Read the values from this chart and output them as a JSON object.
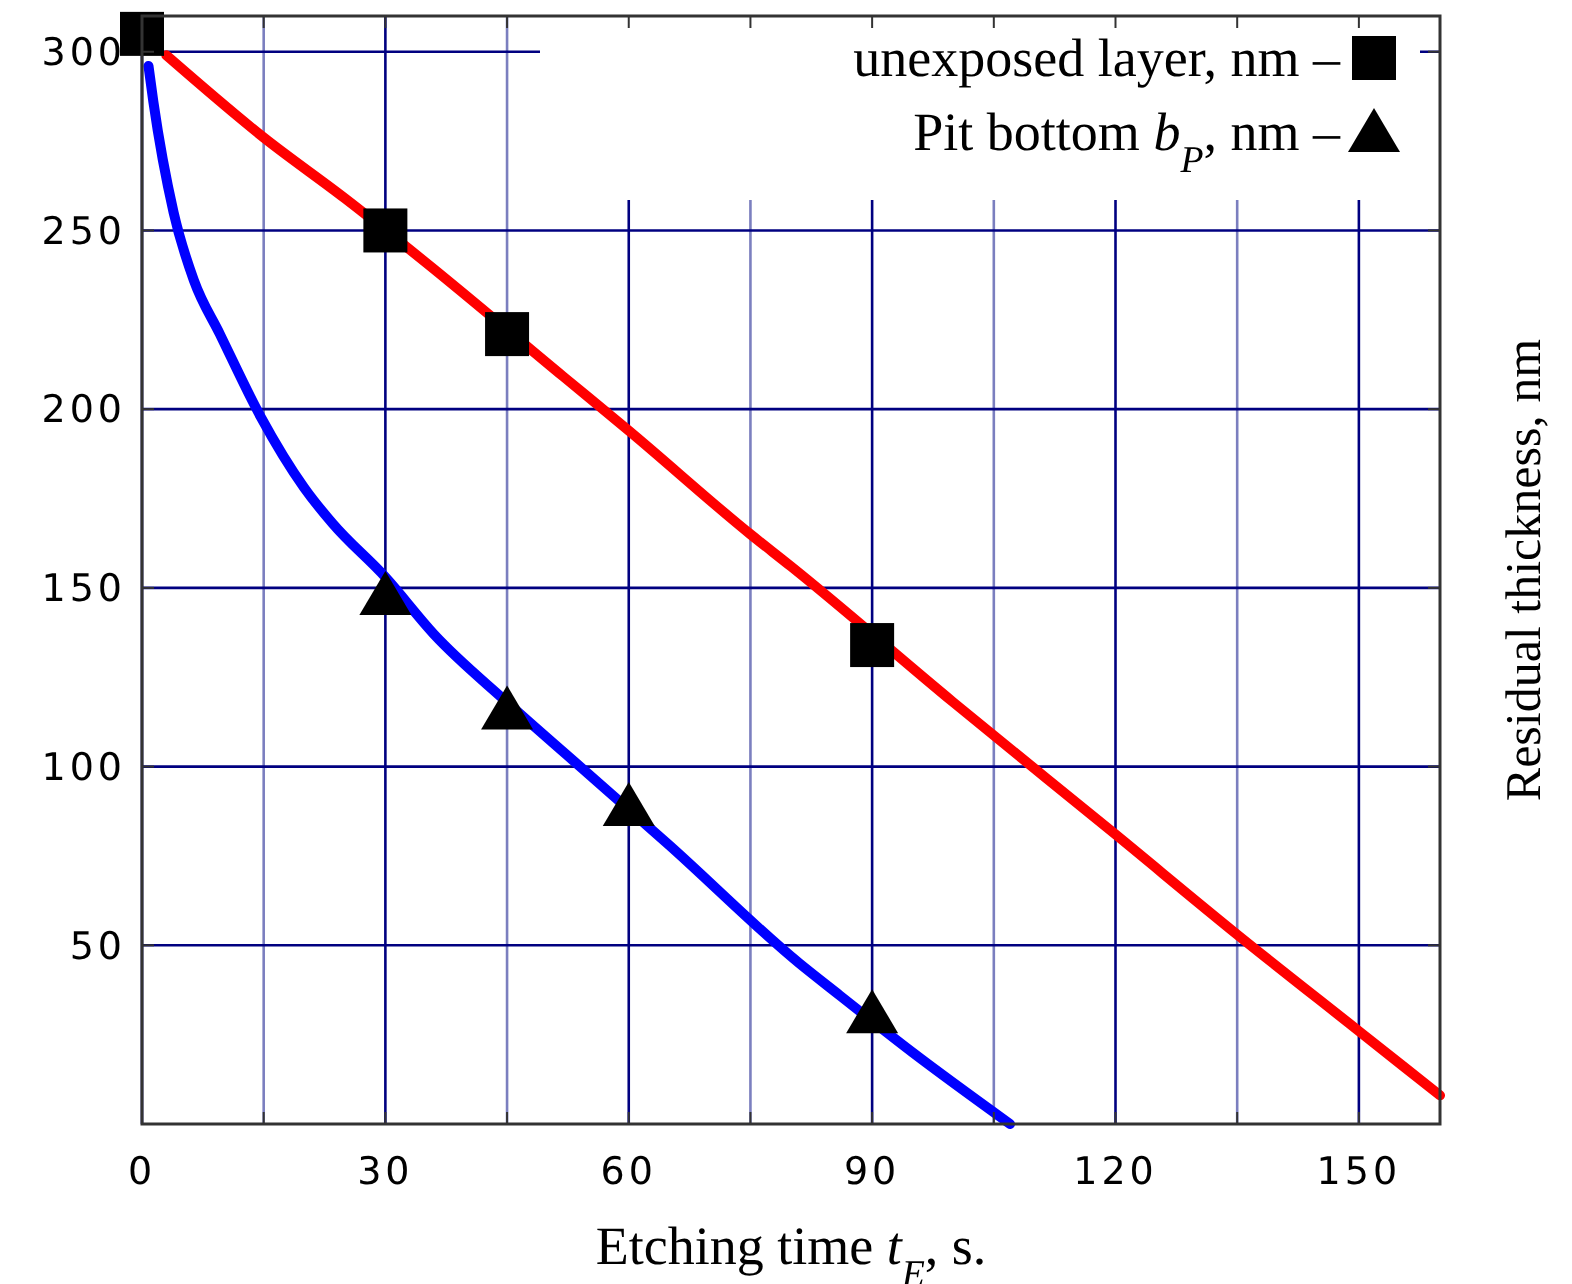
{
  "chart_data": {
    "type": "line",
    "xlabel": "Etching time t$_{E}$, s.",
    "ylabel": "Residual thickness, nm",
    "xlim": [
      0,
      160
    ],
    "ylim": [
      0,
      310
    ],
    "xticks": [
      0,
      {
        "value": 15,
        "label": null
      },
      30,
      {
        "value": 45,
        "label": null
      },
      60,
      {
        "value": 75,
        "label": null
      },
      90,
      {
        "value": 105,
        "label": null
      },
      120,
      {
        "value": 135,
        "label": null
      },
      150
    ],
    "yticks": [
      50,
      100,
      150,
      200,
      250,
      300
    ],
    "grid": true,
    "legend": "top right",
    "series": [
      {
        "color": "#ff0000",
        "x": [
          3,
          15,
          25,
          35,
          52,
          60,
          75,
          80,
          100,
          120,
          135,
          150,
          160
        ],
        "values": [
          299,
          276,
          259,
          241,
          209,
          194,
          165,
          156,
          118,
          81,
          53,
          26,
          8
        ]
      },
      {
        "color": "#0000ff",
        "x": [
          0.8,
          1.4,
          3.9,
          6.4,
          9.6,
          14.6,
          20,
          23.5,
          30,
          36,
          45,
          55,
          65,
          81,
          86,
          95,
          107
        ],
        "values": [
          296,
          286,
          255,
          236,
          221,
          198,
          178,
          168,
          153,
          137,
          118,
          98,
          78,
          45,
          36,
          20,
          0
        ]
      },
      {
        "type": "scatter",
        "name": "unexposed layer, nm –",
        "color": "#000000",
        "marker": "square",
        "x": [
          0,
          30,
          45,
          90
        ],
        "values": [
          305,
          250,
          221,
          134
        ]
      },
      {
        "type": "scatter",
        "name": "Pit bottom b$_{P}$, nm –",
        "color": "#000000",
        "marker": "triangle",
        "x": [
          30,
          45,
          60,
          90
        ],
        "values": [
          148,
          116,
          89,
          31
        ]
      }
    ]
  }
}
